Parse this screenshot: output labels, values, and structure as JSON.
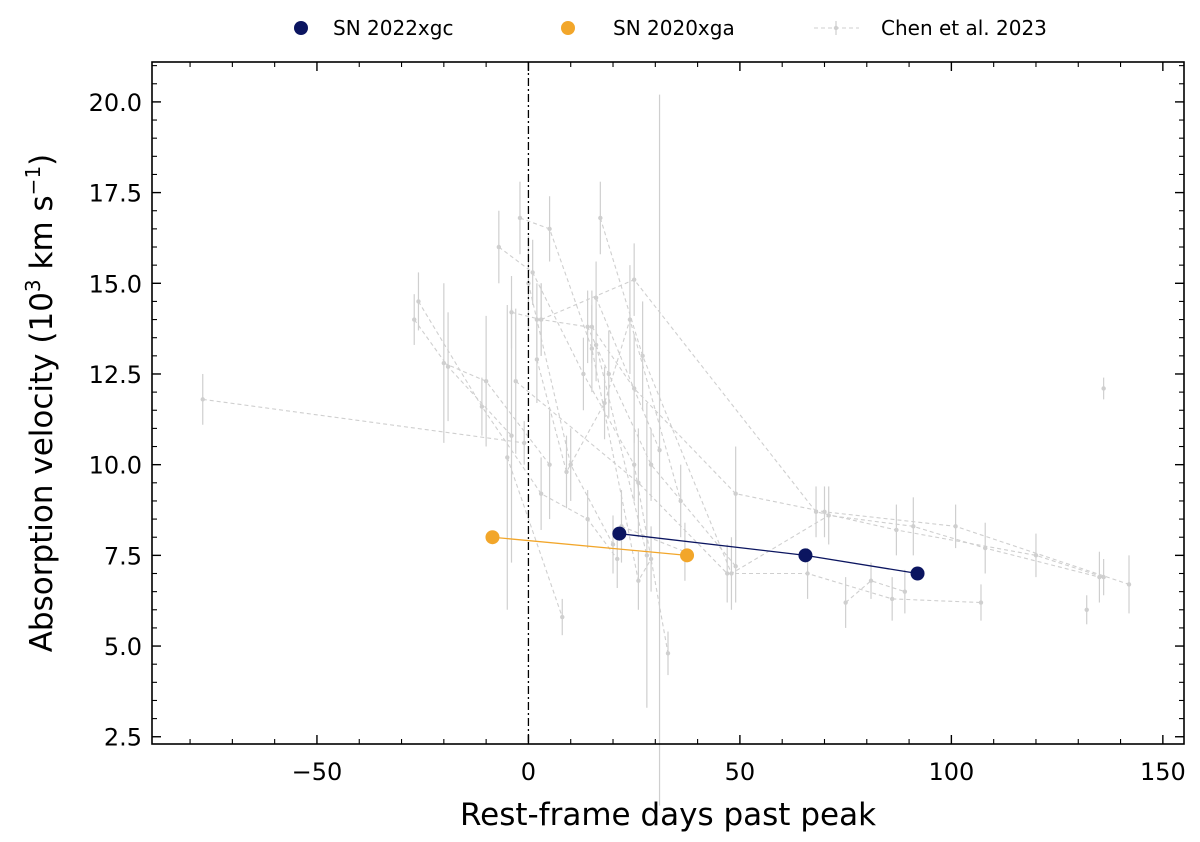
{
  "chart_data": {
    "type": "scatter",
    "xlabel": "Rest-frame days past peak",
    "ylabel_main": "Absorption velocity (10",
    "ylabel_sup": "3",
    "ylabel_mid": " km s",
    "ylabel_sup2": "−1",
    "ylabel_end": ")",
    "xlim": [
      -89,
      155
    ],
    "ylim": [
      2.3,
      21.1
    ],
    "xticks": [
      -50,
      0,
      50,
      100,
      150
    ],
    "xtick_labels": [
      "−50",
      "0",
      "50",
      "100",
      "150"
    ],
    "yticks": [
      2.5,
      5.0,
      7.5,
      10.0,
      12.5,
      15.0,
      17.5,
      20.0
    ],
    "ytick_labels": [
      "2.5",
      "5.0",
      "7.5",
      "10.0",
      "12.5",
      "15.0",
      "17.5",
      "20.0"
    ],
    "xminor_step": 10,
    "yminor_step": 0.5,
    "grid": false,
    "legend_position": "top-center-outside",
    "vline_x": 0,
    "series": [
      {
        "name": "SN 2022xgc",
        "color": "#0b1560",
        "style": "marker-line",
        "points": [
          [
            21.5,
            8.1
          ],
          [
            65.5,
            7.5
          ],
          [
            92,
            7.0
          ]
        ]
      },
      {
        "name": "SN 2020xga",
        "color": "#f2a62a",
        "style": "marker-line",
        "points": [
          [
            -8.5,
            8.0
          ],
          [
            37.5,
            7.5
          ]
        ]
      },
      {
        "name": "Chen et al. 2023",
        "color": "#cfcfcf",
        "style": "dashed-errorbar",
        "tracks": [
          [
            [
              -77,
              11.8,
              0.7
            ],
            [
              -1,
              10.6,
              0.6
            ]
          ],
          [
            [
              -26,
              14.5,
              0.8
            ],
            [
              -11,
              11.6,
              0.8
            ],
            [
              3,
              9.2,
              1.0
            ],
            [
              14,
              8.5,
              0.8
            ],
            [
              21,
              7.4,
              0.8
            ]
          ],
          [
            [
              -20,
              12.8,
              2.2
            ],
            [
              -10,
              12.3,
              1.8
            ],
            [
              5,
              10.0,
              1.5
            ]
          ],
          [
            [
              -7,
              16.0,
              1.0
            ],
            [
              1,
              15.3,
              0.9
            ],
            [
              13,
              12.5,
              1.0
            ],
            [
              25,
              10.0,
              1.0
            ],
            [
              33,
              4.8,
              0.6
            ]
          ],
          [
            [
              -2,
              16.8,
              1.0
            ],
            [
              5,
              16.5,
              0.9
            ],
            [
              15,
              13.2,
              1.2
            ],
            [
              26,
              6.8,
              0.8
            ],
            [
              29,
              7.4,
              0.9
            ]
          ],
          [
            [
              0,
              15.0,
              1.3
            ],
            [
              2,
              14.0,
              1.0
            ],
            [
              10,
              10.0,
              1.0
            ],
            [
              20,
              7.8,
              0.8
            ]
          ],
          [
            [
              2,
              12.9,
              1.2
            ],
            [
              9,
              9.8,
              1.0
            ],
            [
              18,
              11.7,
              1.0
            ],
            [
              24,
              14.0,
              1.5
            ],
            [
              36,
              9.0,
              1.0
            ]
          ],
          [
            [
              -4,
              14.2,
              1.0
            ],
            [
              3,
              14.0,
              1.0
            ],
            [
              14,
              13.8,
              1.0
            ],
            [
              19,
              12.5,
              1.2
            ],
            [
              29,
              10.0,
              1.0
            ],
            [
              49,
              7.2,
              1.0
            ]
          ],
          [
            [
              3,
              14.0,
              1.0
            ],
            [
              25,
              15.1,
              1.0
            ],
            [
              68,
              8.7,
              0.7
            ],
            [
              87,
              8.2,
              0.7
            ],
            [
              120,
              7.5,
              0.6
            ],
            [
              136,
              6.9,
              0.5
            ]
          ],
          [
            [
              15,
              13.8,
              1.0
            ],
            [
              25,
              12.1,
              1.5
            ],
            [
              49,
              9.2,
              1.3
            ],
            [
              70,
              8.7,
              0.7
            ],
            [
              101,
              8.3,
              0.6
            ],
            [
              142,
              6.7,
              0.8
            ]
          ],
          [
            [
              17,
              16.8,
              1.0
            ],
            [
              27,
              13.0,
              1.5
            ],
            [
              48,
              7.0,
              1.0
            ],
            [
              71,
              8.6,
              0.8
            ],
            [
              91,
              8.3,
              0.8
            ],
            [
              108,
              7.7,
              0.7
            ],
            [
              135,
              6.9,
              0.7
            ]
          ],
          [
            [
              -3,
              12.3,
              2.0
            ],
            [
              26,
              9.5,
              1.5
            ],
            [
              47,
              7.0,
              0.8
            ],
            [
              66,
              7.0,
              0.7
            ],
            [
              86,
              6.3,
              0.6
            ],
            [
              107,
              6.2,
              0.5
            ]
          ],
          [
            [
              -27,
              14.0,
              0.7
            ],
            [
              -19,
              12.7,
              1.5
            ],
            [
              -4,
              10.8,
              3.5
            ]
          ],
          [
            [
              -5,
              10.2,
              4.2
            ],
            [
              8,
              5.8,
              0.5
            ]
          ],
          [
            [
              16,
              13.3,
              1.0
            ],
            [
              28,
              7.5,
              4.2
            ]
          ],
          [
            [
              22,
              8.3,
              1.0
            ],
            [
              37,
              7.6,
              0.8
            ]
          ],
          [
            [
              16,
              14.6,
              1.0
            ],
            [
              31,
              10.4,
              9.8
            ]
          ],
          [
            [
              75,
              6.2,
              0.7
            ],
            [
              81,
              6.8,
              0.5
            ],
            [
              89,
              6.5,
              0.6
            ]
          ],
          [
            [
              132,
              6.0,
              0.4
            ]
          ],
          [
            [
              136,
              12.1,
              0.3
            ]
          ]
        ]
      }
    ]
  }
}
